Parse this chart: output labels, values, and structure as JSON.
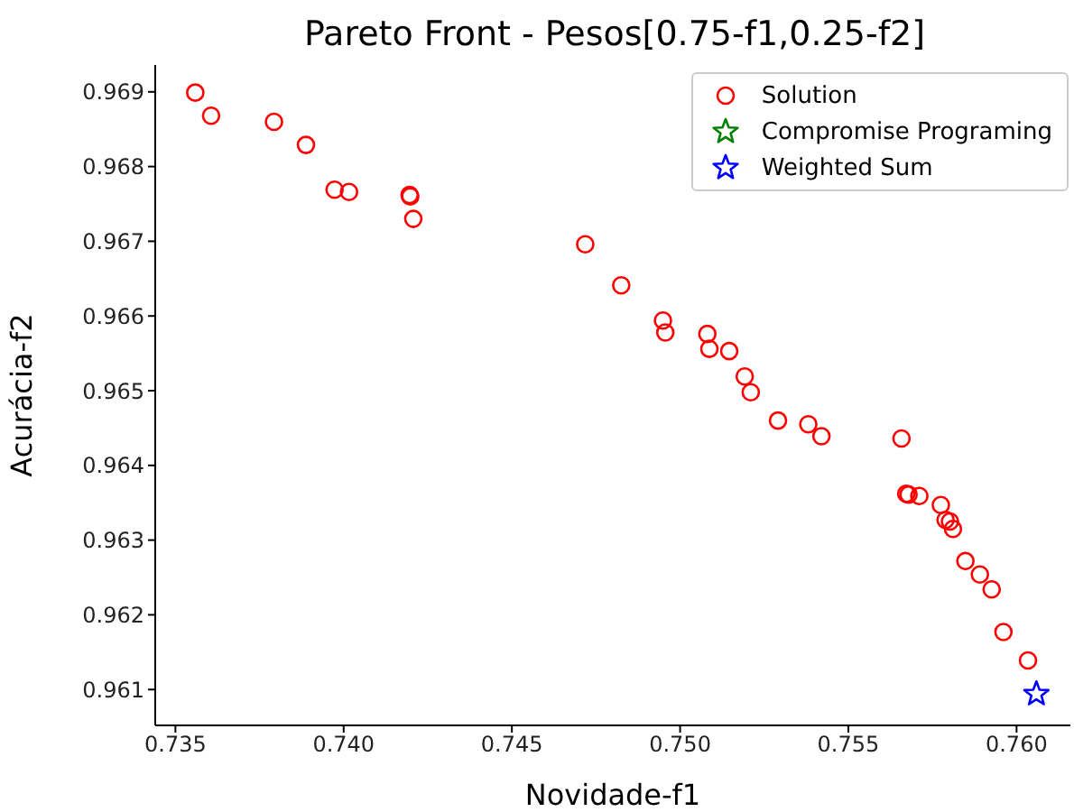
{
  "chart_data": {
    "type": "scatter",
    "title": "Pareto Front - Pesos[0.75-f1,0.25-f2]",
    "xlabel": "Novidade-f1",
    "ylabel": "Acurácia-f2",
    "xlim": [
      0.7344,
      0.7616
    ],
    "ylim": [
      0.96052,
      0.96936
    ],
    "xticks": [
      {
        "value": 0.735,
        "label": "0.735"
      },
      {
        "value": 0.74,
        "label": "0.740"
      },
      {
        "value": 0.745,
        "label": "0.745"
      },
      {
        "value": 0.75,
        "label": "0.750"
      },
      {
        "value": 0.755,
        "label": "0.755"
      },
      {
        "value": 0.76,
        "label": "0.760"
      }
    ],
    "yticks": [
      0.961,
      0.962,
      0.963,
      0.964,
      0.965,
      0.966,
      0.967,
      0.968,
      0.969
    ],
    "grid": false,
    "legend": "top right",
    "series": [
      {
        "name": "Solution",
        "color": "#ff0000",
        "marker": "circle",
        "x": [
          0.73559,
          0.73606,
          0.73793,
          0.73888,
          0.73973,
          0.74016,
          0.74196,
          0.74198,
          0.74207,
          0.74718,
          0.74825,
          0.74949,
          0.74956,
          0.75081,
          0.75087,
          0.75146,
          0.75192,
          0.7521,
          0.75291,
          0.75381,
          0.7542,
          0.75658,
          0.75672,
          0.75679,
          0.75711,
          0.75775,
          0.75789,
          0.75802,
          0.75811,
          0.75848,
          0.75891,
          0.75926,
          0.75961,
          0.76034
        ],
        "values": [
          0.96899,
          0.96868,
          0.9686,
          0.96829,
          0.96769,
          0.96766,
          0.96762,
          0.9676,
          0.9673,
          0.96696,
          0.96641,
          0.96594,
          0.96578,
          0.96576,
          0.96556,
          0.96553,
          0.96519,
          0.96498,
          0.9646,
          0.96455,
          0.96439,
          0.96436,
          0.96362,
          0.96361,
          0.96359,
          0.96347,
          0.96327,
          0.96325,
          0.96315,
          0.96272,
          0.96254,
          0.96234,
          0.96177,
          0.96139
        ]
      },
      {
        "name": "Compromise Programing",
        "color": "#008000",
        "marker": "star",
        "values": [
          null
        ]
      },
      {
        "name": "Weighted Sum",
        "color": "#0000ff",
        "marker": "star",
        "x": [
          0.76059
        ],
        "values": [
          0.96094
        ]
      }
    ]
  }
}
